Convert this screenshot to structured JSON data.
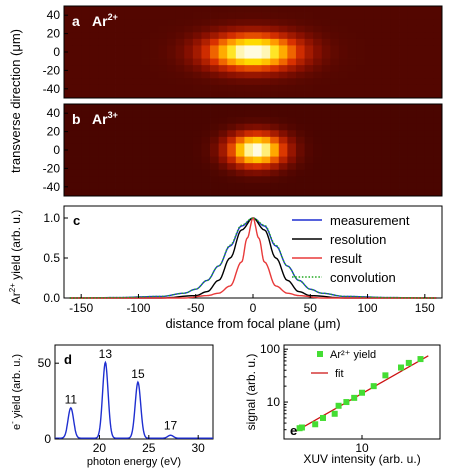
{
  "chart_data": [
    {
      "panel": "a",
      "type": "heatmap",
      "label": "Ar",
      "charge": "2+",
      "ylabel": "transverse direction (μm)",
      "yticks": [
        40,
        20,
        0,
        -20,
        -40
      ],
      "ylim": [
        -50,
        50
      ],
      "xlim": [
        -160,
        160
      ],
      "colormap": [
        "#2e0000",
        "#8a1000",
        "#d83000",
        "#ff8a00",
        "#ffe000",
        "#fffbe0"
      ],
      "spot": {
        "x_center": 0,
        "y_center": 0,
        "sigma_x": 26,
        "sigma_y": 13,
        "background": 0.08,
        "peak": 1.0
      }
    },
    {
      "panel": "b",
      "type": "heatmap",
      "label": "Ar",
      "charge": "3+",
      "yticks": [
        40,
        20,
        0,
        -20,
        -40
      ],
      "ylim": [
        -50,
        50
      ],
      "xlim": [
        -160,
        160
      ],
      "colormap": [
        "#2e0000",
        "#8a1000",
        "#d83000",
        "#ff8a00",
        "#ffe000",
        "#fffbe0"
      ],
      "spot": {
        "x_center": 3,
        "y_center": 0,
        "sigma_x": 16,
        "sigma_y": 12,
        "background": 0.06,
        "peak": 1.0
      }
    },
    {
      "panel": "c",
      "type": "line",
      "ylabel_prefix": "Ar",
      "ylabel_charge": "2+",
      "ylabel_suffix": " yield (arb. u.)",
      "xlabel": "distance from focal plane (μm)",
      "xlim": [
        -165,
        165
      ],
      "ylim": [
        0,
        1.15
      ],
      "xticks": [
        -150,
        -100,
        -50,
        0,
        50,
        100,
        150
      ],
      "yticks": [
        0.0,
        0.5,
        1.0
      ],
      "ytick_labels": [
        "0.0",
        "0.5",
        "1.0"
      ],
      "series": [
        {
          "name": "measurement",
          "color": "#1f2fd0",
          "dash": "solid",
          "x": [
            -160,
            -120,
            -80,
            -60,
            -50,
            -40,
            -30,
            -20,
            -10,
            0,
            10,
            20,
            30,
            40,
            50,
            60,
            80,
            120,
            160
          ],
          "y": [
            0.0,
            0.005,
            0.02,
            0.06,
            0.11,
            0.22,
            0.4,
            0.65,
            0.9,
            1.0,
            0.9,
            0.65,
            0.4,
            0.22,
            0.11,
            0.06,
            0.02,
            0.005,
            0.0
          ]
        },
        {
          "name": "resolution",
          "color": "#000000",
          "dash": "solid",
          "x": [
            -160,
            -80,
            -50,
            -40,
            -30,
            -20,
            -10,
            0,
            10,
            20,
            30,
            40,
            50,
            80,
            160
          ],
          "y": [
            0.0,
            0.0,
            0.03,
            0.08,
            0.22,
            0.5,
            0.85,
            1.0,
            0.85,
            0.5,
            0.22,
            0.08,
            0.03,
            0.0,
            0.0
          ]
        },
        {
          "name": "result",
          "color": "#e83a3a",
          "dash": "solid",
          "x": [
            -160,
            -60,
            -40,
            -30,
            -20,
            -10,
            -5,
            0,
            5,
            10,
            20,
            30,
            40,
            60,
            160
          ],
          "y": [
            0.0,
            0.0,
            0.03,
            0.06,
            0.15,
            0.45,
            0.75,
            1.0,
            0.75,
            0.45,
            0.15,
            0.06,
            0.03,
            0.0,
            0.0
          ]
        },
        {
          "name": "convolution",
          "color": "#1ea81e",
          "dash": "dotted",
          "x": [
            -160,
            -120,
            -80,
            -60,
            -50,
            -40,
            -30,
            -20,
            -10,
            0,
            10,
            20,
            30,
            40,
            50,
            60,
            80,
            120,
            160
          ],
          "y": [
            0.0,
            0.005,
            0.02,
            0.06,
            0.11,
            0.22,
            0.4,
            0.66,
            0.91,
            1.0,
            0.91,
            0.66,
            0.4,
            0.22,
            0.11,
            0.06,
            0.02,
            0.005,
            0.0
          ]
        }
      ],
      "legend": [
        "measurement",
        "resolution",
        "result",
        "convolution"
      ]
    },
    {
      "panel": "d",
      "type": "line",
      "ylabel_prefix": "e",
      "ylabel_charge": "-",
      "ylabel_suffix": " yield (arb. u.)",
      "xlabel": "photon energy (eV)",
      "xlim": [
        15.5,
        31.5
      ],
      "ylim": [
        0,
        62
      ],
      "xticks": [
        20,
        25,
        30
      ],
      "yticks": [
        0,
        50
      ],
      "series": [
        {
          "color": "#1f2fd0",
          "peaks": [
            {
              "x": 17.1,
              "height": 20,
              "width": 0.28
            },
            {
              "x": 20.6,
              "height": 50,
              "width": 0.28
            },
            {
              "x": 23.9,
              "height": 37,
              "width": 0.28
            },
            {
              "x": 27.2,
              "height": 2,
              "width": 0.28
            }
          ],
          "baseline": 0.5
        }
      ],
      "annotations": [
        {
          "text": "11",
          "x": 17.1,
          "y": 22
        },
        {
          "text": "13",
          "x": 20.6,
          "y": 52
        },
        {
          "text": "15",
          "x": 23.9,
          "y": 39
        },
        {
          "text": "17",
          "x": 27.2,
          "y": 5
        }
      ]
    },
    {
      "panel": "e",
      "type": "scatter",
      "log_y": true,
      "ylabel": "signal (arb. u.)",
      "xlabel": "XUV intensity (arb. u.)",
      "xlim": [
        0,
        20
      ],
      "ylim": [
        2,
        120
      ],
      "xticks": [
        10
      ],
      "yticks": [
        10,
        100
      ],
      "series": [
        {
          "name": "Ar²⁺ yield",
          "color": "#44dd33",
          "x": [
            2.0,
            2.3,
            4.0,
            5.0,
            6.5,
            7.0,
            8.0,
            9.0,
            10.0,
            11.5,
            13.0,
            15.0,
            16.0,
            17.5
          ],
          "y": [
            3.2,
            3.3,
            3.8,
            5.0,
            6.0,
            8.5,
            10.0,
            12.0,
            15.0,
            20.0,
            32.0,
            45.0,
            55.0,
            65.0
          ]
        },
        {
          "name": "fit",
          "color": "#cc1111",
          "type": "line",
          "x": [
            1.5,
            18.5
          ],
          "y": [
            2.8,
            75.0
          ]
        }
      ]
    }
  ]
}
